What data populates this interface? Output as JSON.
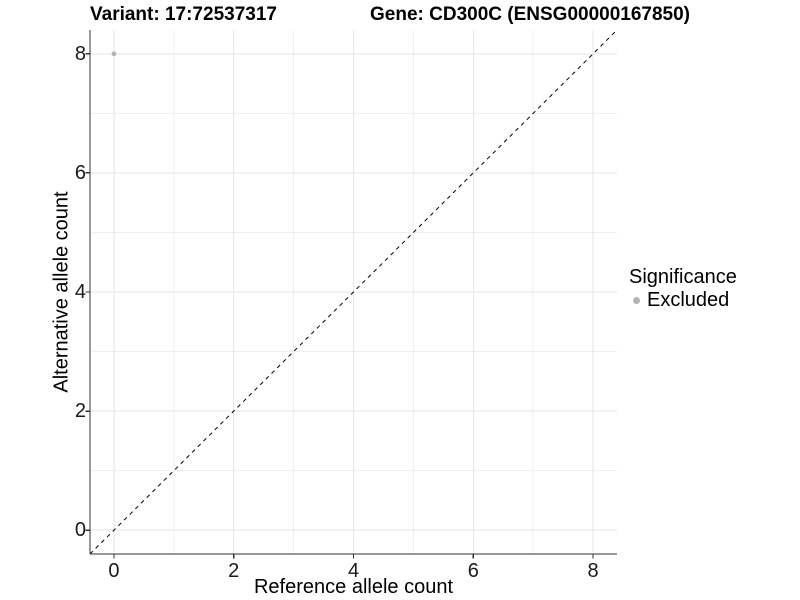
{
  "chart_data": {
    "type": "scatter",
    "title_left": "Variant: 17:72537317",
    "title_right": "Gene: CD300C (ENSG00000167850)",
    "xlabel": "Reference allele count",
    "ylabel": "Alternative allele count",
    "xlim": [
      -0.4,
      8.4
    ],
    "ylim": [
      -0.4,
      8.4
    ],
    "xticks": [
      0,
      2,
      4,
      6,
      8
    ],
    "yticks": [
      0,
      2,
      4,
      6,
      8
    ],
    "x_minor_ticks": [
      1,
      3,
      5,
      7
    ],
    "y_minor_ticks": [
      1,
      3,
      5,
      7
    ],
    "grid": "major+minor",
    "points": [
      {
        "x": 0,
        "y": 8,
        "series": "Excluded"
      }
    ],
    "reference_line": {
      "kind": "identity",
      "slope": 1,
      "intercept": 0,
      "linetype": "dashed"
    },
    "legend": {
      "title": "Significance",
      "position": "right",
      "items": [
        {
          "label": "Excluded",
          "color": "#b4b4b4",
          "marker": "circle"
        }
      ]
    }
  },
  "colors": {
    "point": "#b4b4b4",
    "grid_major": "#e6e6e6",
    "grid_minor": "#f0f0f0",
    "axis_line": "#333333",
    "tick_mark": "#333333",
    "tick_label": "#1a1a1a",
    "diagonal": "#000000",
    "background": "#ffffff"
  }
}
